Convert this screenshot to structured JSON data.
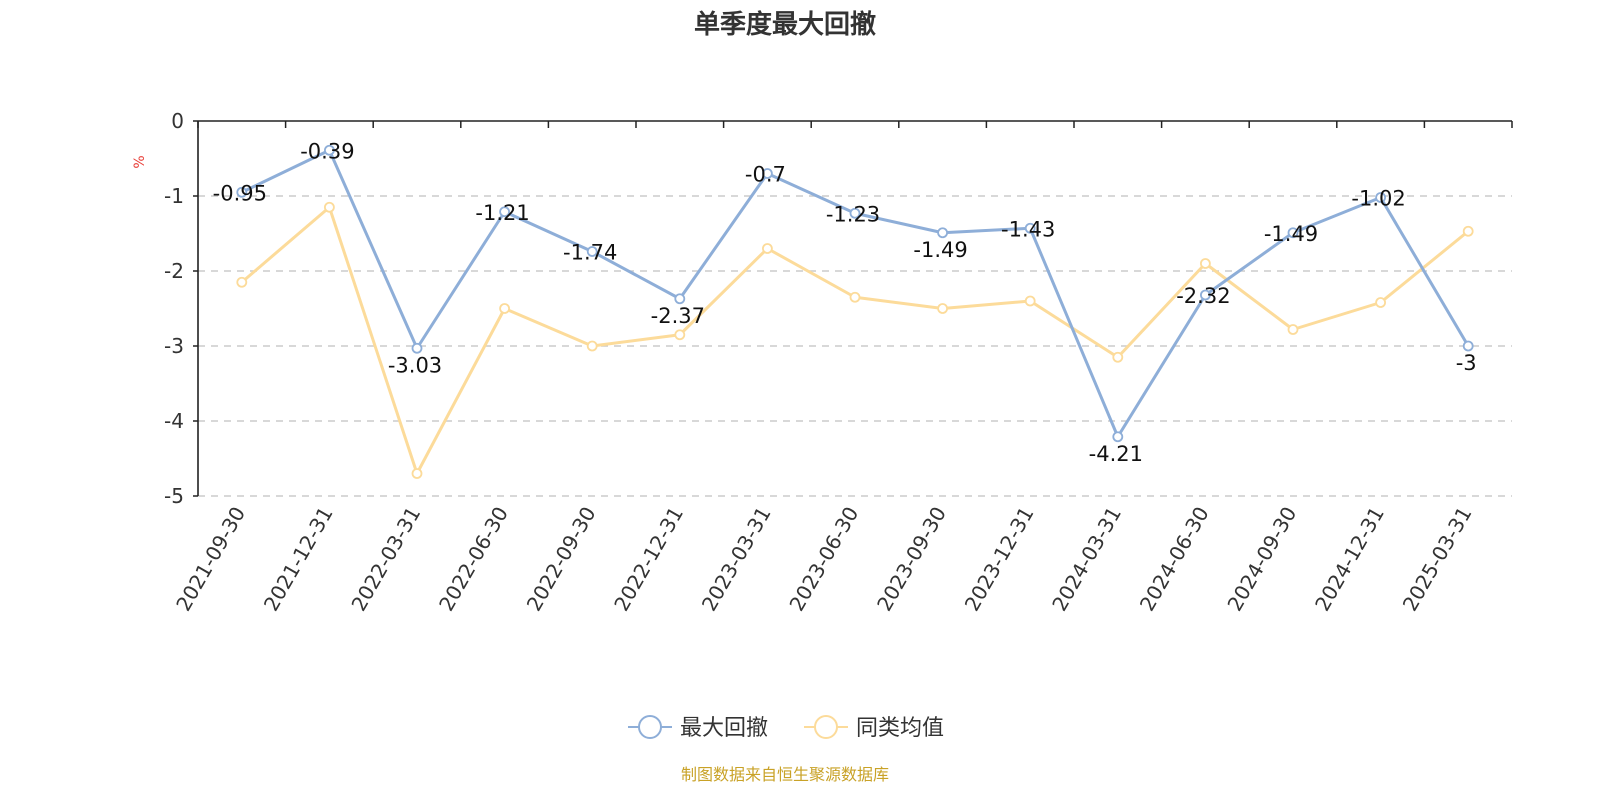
{
  "chart_data": {
    "type": "line",
    "title": "单季度最大回撤",
    "ylabel": "%",
    "ylim": [
      -5,
      0
    ],
    "yticks": [
      0,
      -1,
      -2,
      -3,
      -4,
      -5
    ],
    "grid": true,
    "legend_position": "bottom",
    "categories": [
      "2021-09-30",
      "2021-12-31",
      "2022-03-31",
      "2022-06-30",
      "2022-09-30",
      "2022-12-31",
      "2023-03-31",
      "2023-06-30",
      "2023-09-30",
      "2023-12-31",
      "2024-03-31",
      "2024-06-30",
      "2024-09-30",
      "2024-12-31",
      "2025-03-31"
    ],
    "series": [
      {
        "name": "最大回撤",
        "color": "#8eaed8",
        "show_labels": true,
        "values": [
          -0.95,
          -0.39,
          -3.03,
          -1.21,
          -1.74,
          -2.37,
          -0.7,
          -1.23,
          -1.49,
          -1.43,
          -4.21,
          -2.32,
          -1.49,
          -1.02,
          -3
        ]
      },
      {
        "name": "同类均值",
        "color": "#fcdb9a",
        "show_labels": false,
        "values": [
          -2.15,
          -1.15,
          -4.7,
          -2.5,
          -3.0,
          -2.85,
          -1.7,
          -2.35,
          -2.5,
          -2.4,
          -3.15,
          -1.9,
          -2.78,
          -2.42,
          -1.47
        ]
      }
    ]
  },
  "source": "制图数据来自恒生聚源数据库"
}
